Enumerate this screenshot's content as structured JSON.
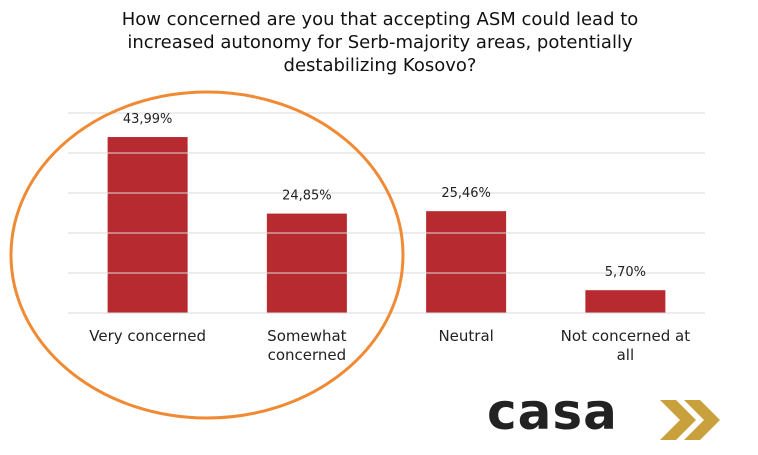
{
  "chart_data": {
    "type": "bar",
    "title": "How concerned are you that accepting ASM could lead to increased autonomy for Serb-majority areas, potentially destabilizing Kosovo?",
    "categories": [
      "Very concerned",
      "Somewhat concerned",
      "Neutral",
      "Not concerned at all"
    ],
    "values": [
      43.99,
      24.85,
      25.46,
      5.7
    ],
    "value_labels": [
      "43,99%",
      "24,85%",
      "25,46%",
      "5,70%"
    ],
    "color": "#b72a30",
    "ylim": [
      0,
      50
    ],
    "yticks": [
      0,
      10,
      20,
      30,
      40,
      50
    ],
    "grid": true
  },
  "logo": "casa"
}
